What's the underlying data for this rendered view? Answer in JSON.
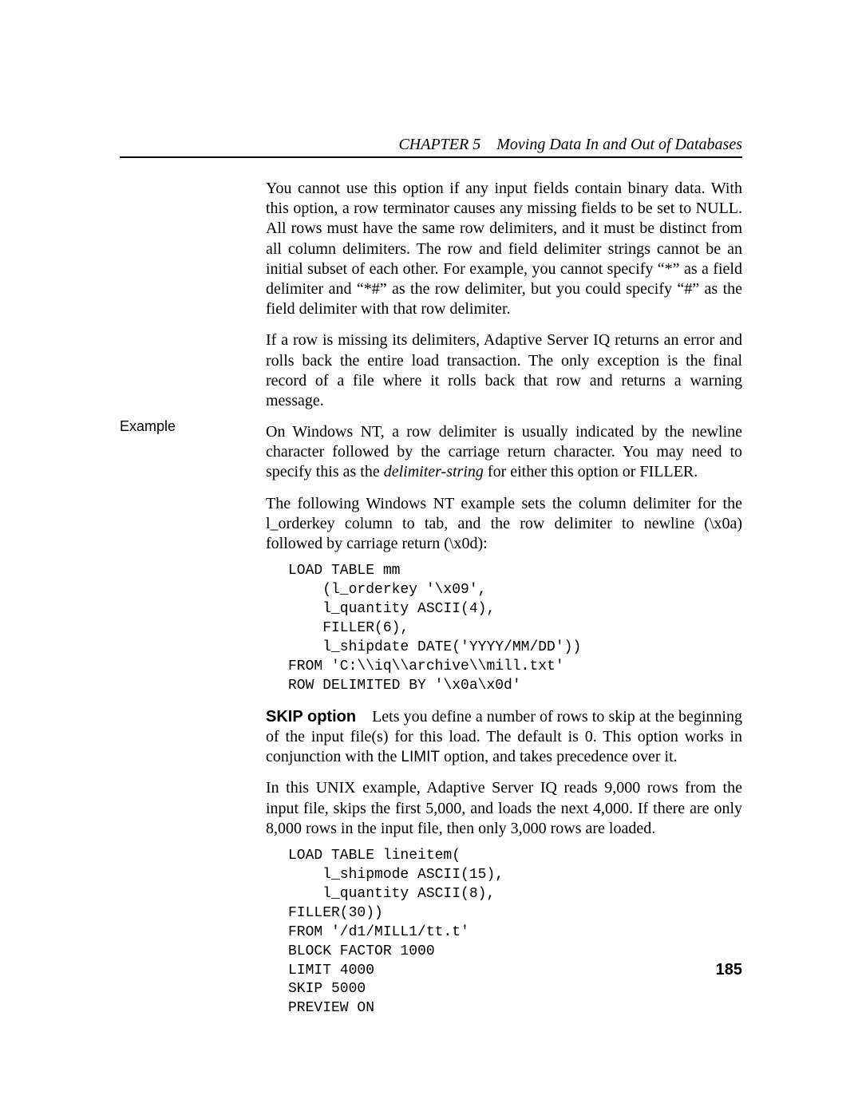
{
  "header": {
    "chapter_label": "CHAPTER 5 Moving Data In and Out of Databases"
  },
  "sidebar": {
    "example_label": "Example"
  },
  "body": {
    "p1": "You cannot use this option if any input fields contain binary data. With this option, a row terminator causes any missing fields to be set to NULL. All rows must have the same row delimiters, and it must be distinct from all column delimiters. The row and field delimiter strings cannot be an initial subset of each other. For example, you cannot specify “*” as a field delimiter and “*#” as the row delimiter, but you could specify “#” as the field delimiter with that row delimiter.",
    "p2": "If a row is missing its delimiters, Adaptive Server IQ returns an error and rolls back the entire load transaction. The only exception is the final record of a file where it rolls back that row and returns a warning message.",
    "p3_a": "On Windows NT, a row delimiter is usually indicated by the newline character followed by the carriage return character. You may need to specify this as the ",
    "p3_i": "delimiter-string",
    "p3_b": " for either this option or FILLER.",
    "p4": "The following Windows NT example sets the column delimiter for the l_orderkey column to tab, and the row delimiter to newline (\\x0a) followed by carriage return (\\x0d):",
    "code1": "LOAD TABLE mm\n    (l_orderkey '\\x09',\n    l_quantity ASCII(4),\n    FILLER(6),\n    l_shipdate DATE('YYYY/MM/DD'))\nFROM 'C:\\\\iq\\\\archive\\\\mill.txt'\nROW DELIMITED BY '\\x0a\\x0d'",
    "skip_label": "SKIP option",
    "p5_a": "Lets you define a number of rows to skip at the beginning of the input file(s) for this load. The default is 0. This option works in conjunction with the ",
    "p5_limit": "LIMIT",
    "p5_b": " option, and takes precedence over it.",
    "p6": "In this UNIX example, Adaptive Server IQ reads 9,000 rows from the input file, skips the first 5,000, and loads the next 4,000. If there are only 8,000 rows in the input file, then only 3,000 rows are loaded.",
    "code2": "LOAD TABLE lineitem(\n    l_shipmode ASCII(15),\n    l_quantity ASCII(8),\nFILLER(30))\nFROM '/d1/MILL1/tt.t'\nBLOCK FACTOR 1000\nLIMIT 4000\nSKIP 5000\nPREVIEW ON"
  },
  "footer": {
    "page_number": "185"
  }
}
